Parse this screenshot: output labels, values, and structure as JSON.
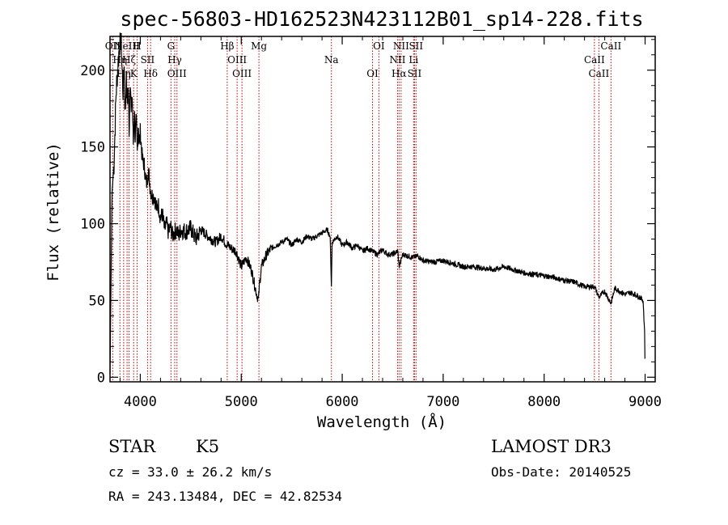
{
  "chart_data": {
    "type": "line",
    "title": "spec-56803-HD162523N423112B01_sp14-228.fits",
    "xlabel": "Wavelength (Å)",
    "ylabel": "Flux (relative)",
    "xlim": [
      3700,
      9100
    ],
    "ylim": [
      -3,
      222
    ],
    "xticks": [
      4000,
      5000,
      6000,
      7000,
      8000,
      9000
    ],
    "yticks": [
      0,
      50,
      100,
      150,
      200
    ],
    "grid": false,
    "series": [
      {
        "x": [
          3700,
          3720,
          3740,
          3760,
          3780,
          3800,
          3810,
          3820,
          3830,
          3840,
          3850,
          3860,
          3870,
          3880,
          3890,
          3900,
          3910,
          3920,
          3930,
          3940,
          3950,
          3960,
          3970,
          3980,
          3990,
          4000,
          4020,
          4040,
          4060,
          4080,
          4100,
          4120,
          4140,
          4160,
          4180,
          4200,
          4220,
          4240,
          4260,
          4280,
          4300,
          4320,
          4340,
          4360,
          4380,
          4400,
          4450,
          4500,
          4550,
          4600,
          4650,
          4700,
          4750,
          4800,
          4850,
          4900,
          4950,
          5000,
          5050,
          5100,
          5150,
          5170,
          5180,
          5200,
          5250,
          5300,
          5350,
          5400,
          5450,
          5500,
          5550,
          5600,
          5650,
          5700,
          5750,
          5800,
          5850,
          5880,
          5893,
          5900,
          5950,
          6000,
          6050,
          6100,
          6150,
          6200,
          6250,
          6300,
          6350,
          6400,
          6450,
          6500,
          6550,
          6563,
          6600,
          6650,
          6700,
          6750,
          6800,
          6900,
          7000,
          7100,
          7200,
          7300,
          7400,
          7500,
          7600,
          7700,
          7800,
          7900,
          8000,
          8100,
          8200,
          8300,
          8400,
          8500,
          8542,
          8600,
          8662,
          8700,
          8800,
          8850,
          8900,
          8950,
          8980,
          8995,
          9000
        ],
        "y": [
          2,
          120,
          140,
          185,
          205,
          222,
          218,
          200,
          185,
          205,
          170,
          195,
          178,
          190,
          160,
          200,
          170,
          185,
          150,
          175,
          155,
          165,
          145,
          168,
          150,
          160,
          142,
          138,
          125,
          135,
          122,
          118,
          118,
          110,
          112,
          104,
          106,
          96,
          100,
          94,
          98,
          92,
          95,
          96,
          92,
          96,
          95,
          97,
          90,
          96,
          93,
          90,
          88,
          92,
          87,
          84,
          82,
          72,
          78,
          70,
          55,
          50,
          60,
          72,
          80,
          84,
          86,
          88,
          90,
          86,
          90,
          88,
          92,
          90,
          92,
          94,
          96,
          92,
          60,
          88,
          92,
          86,
          88,
          84,
          86,
          82,
          84,
          82,
          80,
          83,
          80,
          80,
          82,
          72,
          80,
          79,
          78,
          79,
          76,
          75,
          76,
          74,
          72,
          72,
          71,
          70,
          72,
          70,
          68,
          67,
          66,
          65,
          63,
          62,
          59,
          59,
          52,
          56,
          48,
          58,
          54,
          55,
          54,
          52,
          50,
          30,
          0
        ]
      }
    ],
    "line_marks": [
      {
        "x": 3727,
        "label": "OII"
      },
      {
        "x": 3798,
        "label": "Hη"
      },
      {
        "x": 3835,
        "label": "Hη"
      },
      {
        "x": 3869,
        "label": "NeIII"
      },
      {
        "x": 3889,
        "label": "Hζ"
      },
      {
        "x": 3934,
        "label": "K"
      },
      {
        "x": 3969,
        "label": "H"
      },
      {
        "x": 4072,
        "label": "SII"
      },
      {
        "x": 4102,
        "label": "Hδ"
      },
      {
        "x": 4304,
        "label": "G"
      },
      {
        "x": 4341,
        "label": "Hγ"
      },
      {
        "x": 4363,
        "label": "OIII"
      },
      {
        "x": 4861,
        "label": "Hβ"
      },
      {
        "x": 4959,
        "label": "OIII"
      },
      {
        "x": 5007,
        "label": "OIII"
      },
      {
        "x": 5175,
        "label": "Mg"
      },
      {
        "x": 5893,
        "label": "Na"
      },
      {
        "x": 6300,
        "label": "OI"
      },
      {
        "x": 6363,
        "label": "OI"
      },
      {
        "x": 6548,
        "label": "NII"
      },
      {
        "x": 6563,
        "label": "Hα"
      },
      {
        "x": 6583,
        "label": "NII"
      },
      {
        "x": 6707,
        "label": "Li"
      },
      {
        "x": 6716,
        "label": "SII"
      },
      {
        "x": 6731,
        "label": "SII"
      },
      {
        "x": 8498,
        "label": "CaII"
      },
      {
        "x": 8542,
        "label": "CaII"
      },
      {
        "x": 8662,
        "label": "CaII"
      }
    ]
  },
  "info": {
    "class": "STAR",
    "subclass": "K5",
    "cz": "cz = 33.0 ± 26.2 km/s",
    "radec": "RA = 243.13484, DEC =  42.82534",
    "survey": "LAMOST DR3",
    "obsdate": "Obs-Date: 20140525"
  }
}
